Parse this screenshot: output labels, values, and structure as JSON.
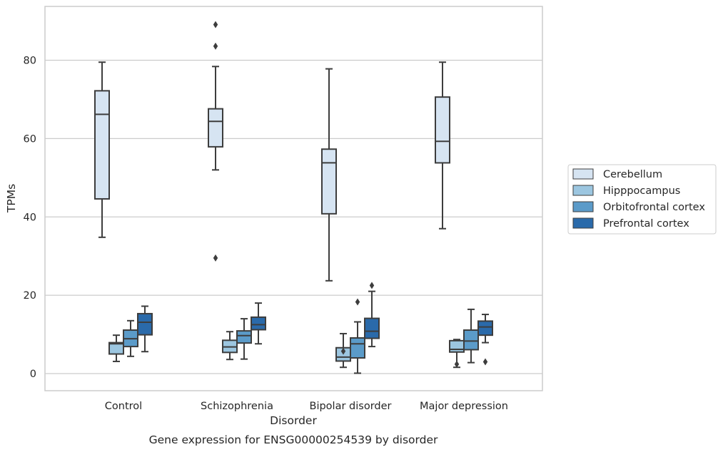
{
  "chart_data": {
    "type": "box",
    "title": "Gene expression for ENSG00000254539 by disorder",
    "xlabel": "Disorder",
    "ylabel": "TPMs",
    "ylim": [
      -4.3,
      93.5
    ],
    "yticks": [
      0,
      20,
      40,
      60,
      80
    ],
    "grid": "horizontal",
    "legend_position": "right",
    "categories": [
      "Control",
      "Schizophrenia",
      "Bipolar disorder",
      "Major depression"
    ],
    "series": [
      {
        "name": "Cerebellum",
        "color": "#d6e4f2",
        "boxes": [
          {
            "whisker_low": 34.8,
            "q1": 44.6,
            "median": 66.2,
            "q3": 72.2,
            "whisker_high": 79.5,
            "outliers": []
          },
          {
            "whisker_low": 52.0,
            "q1": 57.9,
            "median": 64.4,
            "q3": 67.6,
            "whisker_high": 78.4,
            "outliers": [
              89.1,
              83.6,
              29.5
            ]
          },
          {
            "whisker_low": 23.7,
            "q1": 40.8,
            "median": 53.8,
            "q3": 57.3,
            "whisker_high": 77.8,
            "outliers": []
          },
          {
            "whisker_low": 37.0,
            "q1": 53.8,
            "median": 59.3,
            "q3": 70.6,
            "whisker_high": 79.5,
            "outliers": []
          }
        ]
      },
      {
        "name": "Hipppocampus",
        "color": "#9cc6e0",
        "boxes": [
          {
            "whisker_low": 3.1,
            "q1": 5.0,
            "median": 7.6,
            "q3": 7.9,
            "whisker_high": 9.8,
            "outliers": []
          },
          {
            "whisker_low": 3.6,
            "q1": 5.4,
            "median": 6.8,
            "q3": 8.5,
            "whisker_high": 10.7,
            "outliers": []
          },
          {
            "whisker_low": 1.6,
            "q1": 3.2,
            "median": 4.2,
            "q3": 6.6,
            "whisker_high": 10.2,
            "outliers": [
              5.7
            ]
          },
          {
            "whisker_low": 1.6,
            "q1": 5.5,
            "median": 6.2,
            "q3": 8.4,
            "whisker_high": 8.7,
            "outliers": [
              2.4
            ]
          }
        ]
      },
      {
        "name": "Orbitofrontal cortex",
        "color": "#5b9bc9",
        "boxes": [
          {
            "whisker_low": 4.4,
            "q1": 6.9,
            "median": 8.9,
            "q3": 11.1,
            "whisker_high": 13.5,
            "outliers": []
          },
          {
            "whisker_low": 3.7,
            "q1": 7.8,
            "median": 9.7,
            "q3": 10.9,
            "whisker_high": 14.0,
            "outliers": []
          },
          {
            "whisker_low": 0.1,
            "q1": 4.0,
            "median": 7.6,
            "q3": 9.1,
            "whisker_high": 13.2,
            "outliers": [
              18.3
            ]
          },
          {
            "whisker_low": 2.8,
            "q1": 6.1,
            "median": 8.3,
            "q3": 11.1,
            "whisker_high": 16.4,
            "outliers": []
          }
        ]
      },
      {
        "name": "Prefrontal cortex",
        "color": "#2a6aaa",
        "boxes": [
          {
            "whisker_low": 5.6,
            "q1": 9.9,
            "median": 13.1,
            "q3": 15.3,
            "whisker_high": 17.2,
            "outliers": []
          },
          {
            "whisker_low": 7.6,
            "q1": 11.2,
            "median": 12.5,
            "q3": 14.4,
            "whisker_high": 18.0,
            "outliers": []
          },
          {
            "whisker_low": 6.9,
            "q1": 9.0,
            "median": 10.8,
            "q3": 14.1,
            "whisker_high": 21.0,
            "outliers": [
              22.5
            ]
          },
          {
            "whisker_low": 7.9,
            "q1": 9.8,
            "median": 11.9,
            "q3": 13.4,
            "whisker_high": 15.1,
            "outliers": [
              3.0
            ]
          }
        ]
      }
    ]
  }
}
